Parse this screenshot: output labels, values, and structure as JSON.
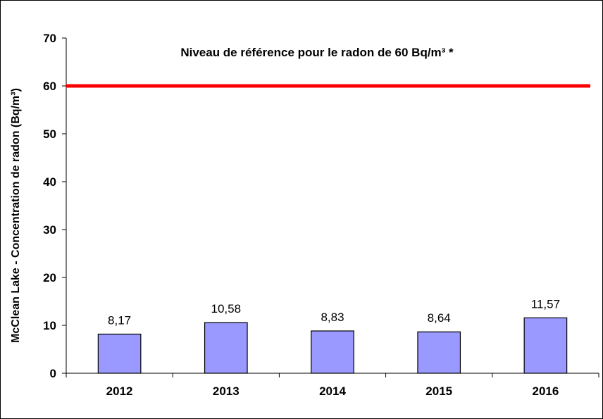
{
  "chart_data": {
    "type": "bar",
    "categories": [
      "2012",
      "2013",
      "2014",
      "2015",
      "2016"
    ],
    "values": [
      8.17,
      10.58,
      8.83,
      8.64,
      11.57
    ],
    "data_labels": [
      "8,17",
      "10,58",
      "8,83",
      "8,64",
      "11,57"
    ],
    "title": "",
    "xlabel": "",
    "ylabel": "McClean Lake - Concentration de radon (Bq/m³)",
    "ylim": [
      0,
      70
    ],
    "yticks": [
      0,
      10,
      20,
      30,
      40,
      50,
      60,
      70
    ],
    "grid": false,
    "bar_color": "#9999FF",
    "reference_line": {
      "value": 60,
      "color": "#FF0000",
      "label": "Niveau de  référence pour le radon de 60 Bq/m³ *"
    }
  }
}
